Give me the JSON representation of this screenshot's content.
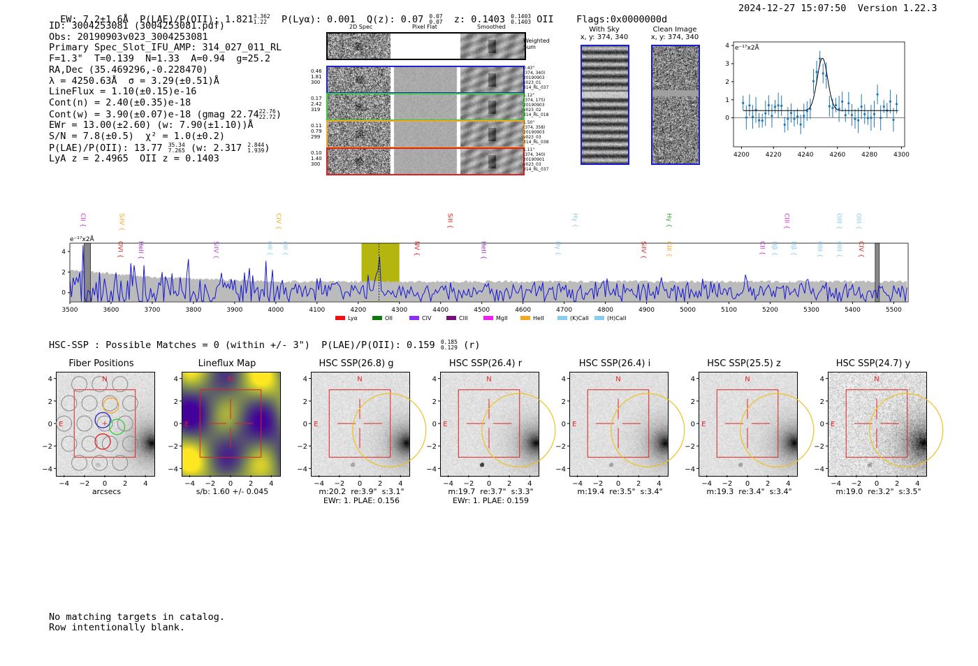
{
  "header": {
    "ew": "EW: 7.2±1.6Å",
    "plae_label": "P(LAE)/P(OII): 1.821",
    "plae_sup": "3.362",
    "plae_sub": "1.22",
    "plya": "P(Lyα): 0.001",
    "qz_label": "Q(z): 0.07",
    "qz_sup": "0.07",
    "qz_sub": "0.07",
    "z_label": "z: 0.1403",
    "z_sup": "0.1403",
    "z_sub": "0.1403",
    "z_line": "OII",
    "flags": "Flags:0x0000000d",
    "timestamp": "2024-12-27 15:07:50",
    "version": "Version 1.22.3"
  },
  "info": {
    "l1": "ID: 3004253081 (3004253081.pdf)",
    "l2": "Obs: 20190903v023_3004253081",
    "l3": "Primary Spec_Slot_IFU_AMP: 314_027_011_RL",
    "l4": "F=1.3\"  T=0.139  N=1.33  A=0.94  g=25.2",
    "l5": "RA,Dec (35.469296,-0.228470)",
    "l6": "λ = 4250.63Å  σ = 3.29(±0.51)Å",
    "l7": "LineFlux = 1.10(±0.15)e-16",
    "l8": "Cont(n) = 2.40(±0.35)e-18",
    "l9": "Cont(w) = 3.90(±0.07)e-18 (gmag 22.74",
    "l9_sup": "22.76",
    "l9_sub": "22.72",
    "l10": "EWr = 13.00(±2.60) (w: 7.90(±1.10))Å",
    "l11": "S/N = 7.8(±0.5)  χ² = 1.0(±0.2)",
    "l12": "P(LAE)/P(OII): 13.77",
    "l12_sup": "35.34",
    "l12_sub": "7.265",
    "l12b": "(w: 2.317",
    "l12b_sup": "2.844",
    "l12b_sub": "1.939",
    "l13": "LyA z = 2.4965  OII z = 0.1403"
  },
  "cutouts": {
    "col_2d": "2D Spec",
    "col_flat": "Pixel Flat",
    "col_smooth": "Smoothed",
    "weighted": "Weighted\nSum",
    "rows": [
      {
        "left": "0.46\n1.81\n300",
        "right": "0.43\"\n(374, 340)\n20190903\nv023_01\n314_RL_037",
        "color": "#1f1fd0"
      },
      {
        "left": "0.17\n2.42\n319",
        "right": "1.12\"\n(374, 175)\n20190903\nv023_02\n314_RL_018",
        "color": "#33cc33"
      },
      {
        "left": "0.11\n0.79\n299",
        "right": "1.50\"\n(374, 358)\n20190903\nv023_03\n314_RL_038",
        "color": "#f5a623"
      },
      {
        "left": "0.10\n1.40\n300",
        "right": "1.11\"\n(374, 340)\n20190901\nv023_03\n314_RL_037",
        "color": "#e02020"
      }
    ]
  },
  "sky": {
    "with_sky_title": "With Sky",
    "with_sky_xy": "x, y: 374, 340",
    "clean_title": "Clean Image",
    "clean_xy": "x, y: 374, 340"
  },
  "zoom_plot": {
    "ylabel": "e⁻¹⁷x2Å",
    "xticks": [
      "4200",
      "4220",
      "4240",
      "4260",
      "4280",
      "4300"
    ],
    "yticks": [
      "0",
      "1",
      "2",
      "3",
      "4"
    ]
  },
  "spectrum": {
    "ylabel": "e⁻¹⁷x2Å",
    "xticks": [
      "3500",
      "3600",
      "3700",
      "3800",
      "3900",
      "4000",
      "4100",
      "4200",
      "4300",
      "4400",
      "4500",
      "4600",
      "4700",
      "4800",
      "4900",
      "5000",
      "5100",
      "5200",
      "5300",
      "5400",
      "5500"
    ],
    "yticks": [
      "0",
      "2",
      "4"
    ],
    "lines": [
      {
        "label": "CII",
        "color": "#cc33cc",
        "w": 3527
      },
      {
        "label": "OVI",
        "color": "#dd2222",
        "w": 3618
      },
      {
        "label": "HeII",
        "color": "#9933cc",
        "w": 3668
      },
      {
        "label": "SiIV",
        "color": "#f5a623",
        "w": 3621
      },
      {
        "label": "SiIV",
        "color": "#aa55cc",
        "w": 3850
      },
      {
        "label": "OII",
        "color": "#88ccee",
        "w": 3981
      },
      {
        "label": "CIV",
        "color": "#f5a623",
        "w": 4002
      },
      {
        "label": "OII",
        "color": "#88ccee",
        "w": 4018
      },
      {
        "label": "NV",
        "color": "#dd2222",
        "w": 4338
      },
      {
        "label": "SiII",
        "color": "#dd2222",
        "w": 4418
      },
      {
        "label": "HeII",
        "color": "#9933cc",
        "w": 4500
      },
      {
        "label": "Hγ",
        "color": "#88ccee",
        "w": 4680
      },
      {
        "label": "Hγ",
        "color": "#88ccee",
        "w": 4722
      },
      {
        "label": "SiIV",
        "color": "#dd2222",
        "w": 4888
      },
      {
        "label": "CIII",
        "color": "#f5a623",
        "w": 4950
      },
      {
        "label": "Hγ",
        "color": "#33aa33",
        "w": 4950
      },
      {
        "label": "CII",
        "color": "#cc33cc",
        "w": 5176
      },
      {
        "label": "Hβ",
        "color": "#88ccee",
        "w": 5206
      },
      {
        "label": "CIII",
        "color": "#cc33cc",
        "w": 5236
      },
      {
        "label": "Hβ",
        "color": "#88ccee",
        "w": 5253
      },
      {
        "label": "OIII",
        "color": "#88ccee",
        "w": 5316
      },
      {
        "label": "OIII",
        "color": "#88ccee",
        "w": 5363
      },
      {
        "label": "CIV",
        "color": "#dd2222",
        "w": 5416
      },
      {
        "label": "OIII",
        "color": "#88ccee",
        "w": 5363
      },
      {
        "label": "OIII",
        "color": "#88ccee",
        "w": 5410
      }
    ],
    "legend": [
      {
        "label": "Lyα",
        "color": "#ee1111"
      },
      {
        "label": "OII",
        "color": "#117711"
      },
      {
        "label": "CIV",
        "color": "#8833ee"
      },
      {
        "label": "CIII",
        "color": "#771177"
      },
      {
        "label": "MgII",
        "color": "#ee22ee"
      },
      {
        "label": "HeII",
        "color": "#f5a623"
      },
      {
        "label": "(K)CaII",
        "color": "#88ccee"
      },
      {
        "label": "(H)CaII",
        "color": "#88ccee"
      }
    ]
  },
  "hsc": {
    "summary": "HSC-SSP : Possible Matches = 0 (within +/- 3\")  P(LAE)/P(OII): 0.159",
    "summary_sup": "0.185",
    "summary_sub": "0.129",
    "summary_band": "(r)",
    "panels": [
      {
        "title": "Fiber Positions",
        "cap": "arcsecs"
      },
      {
        "title": "Lineflux Map",
        "cap": "s/b: 1.60 +/- 0.045"
      },
      {
        "title": "HSC SSP(26.8) g",
        "cap": "m:20.2  re:3.9\"  s:3.1\"\nEWr: 1. PLAE: 0.156"
      },
      {
        "title": "HSC SSP(26.4) r",
        "cap": "m:19.7  re:3.7\"  s:3.3\"\nEWr: 1. PLAE: 0.159"
      },
      {
        "title": "HSC SSP(26.4) i",
        "cap": "m:19.4  re:3.5\"  s:3.4\""
      },
      {
        "title": "HSC SSP(25.5) z",
        "cap": "m:19.3  re:3.4\"  s:3.4\""
      },
      {
        "title": "HSC SSP(24.7) y",
        "cap": "m:19.0  re:3.2\"  s:3.5\""
      }
    ],
    "ticks": [
      "4",
      "2",
      "0",
      "−2",
      "−4"
    ],
    "xticks": [
      "−4",
      "−2",
      "0",
      "2",
      "4"
    ],
    "N": "N",
    "E": "E"
  },
  "footer": {
    "l1": "No matching targets in catalog.",
    "l2": "Row intentionally blank."
  }
}
